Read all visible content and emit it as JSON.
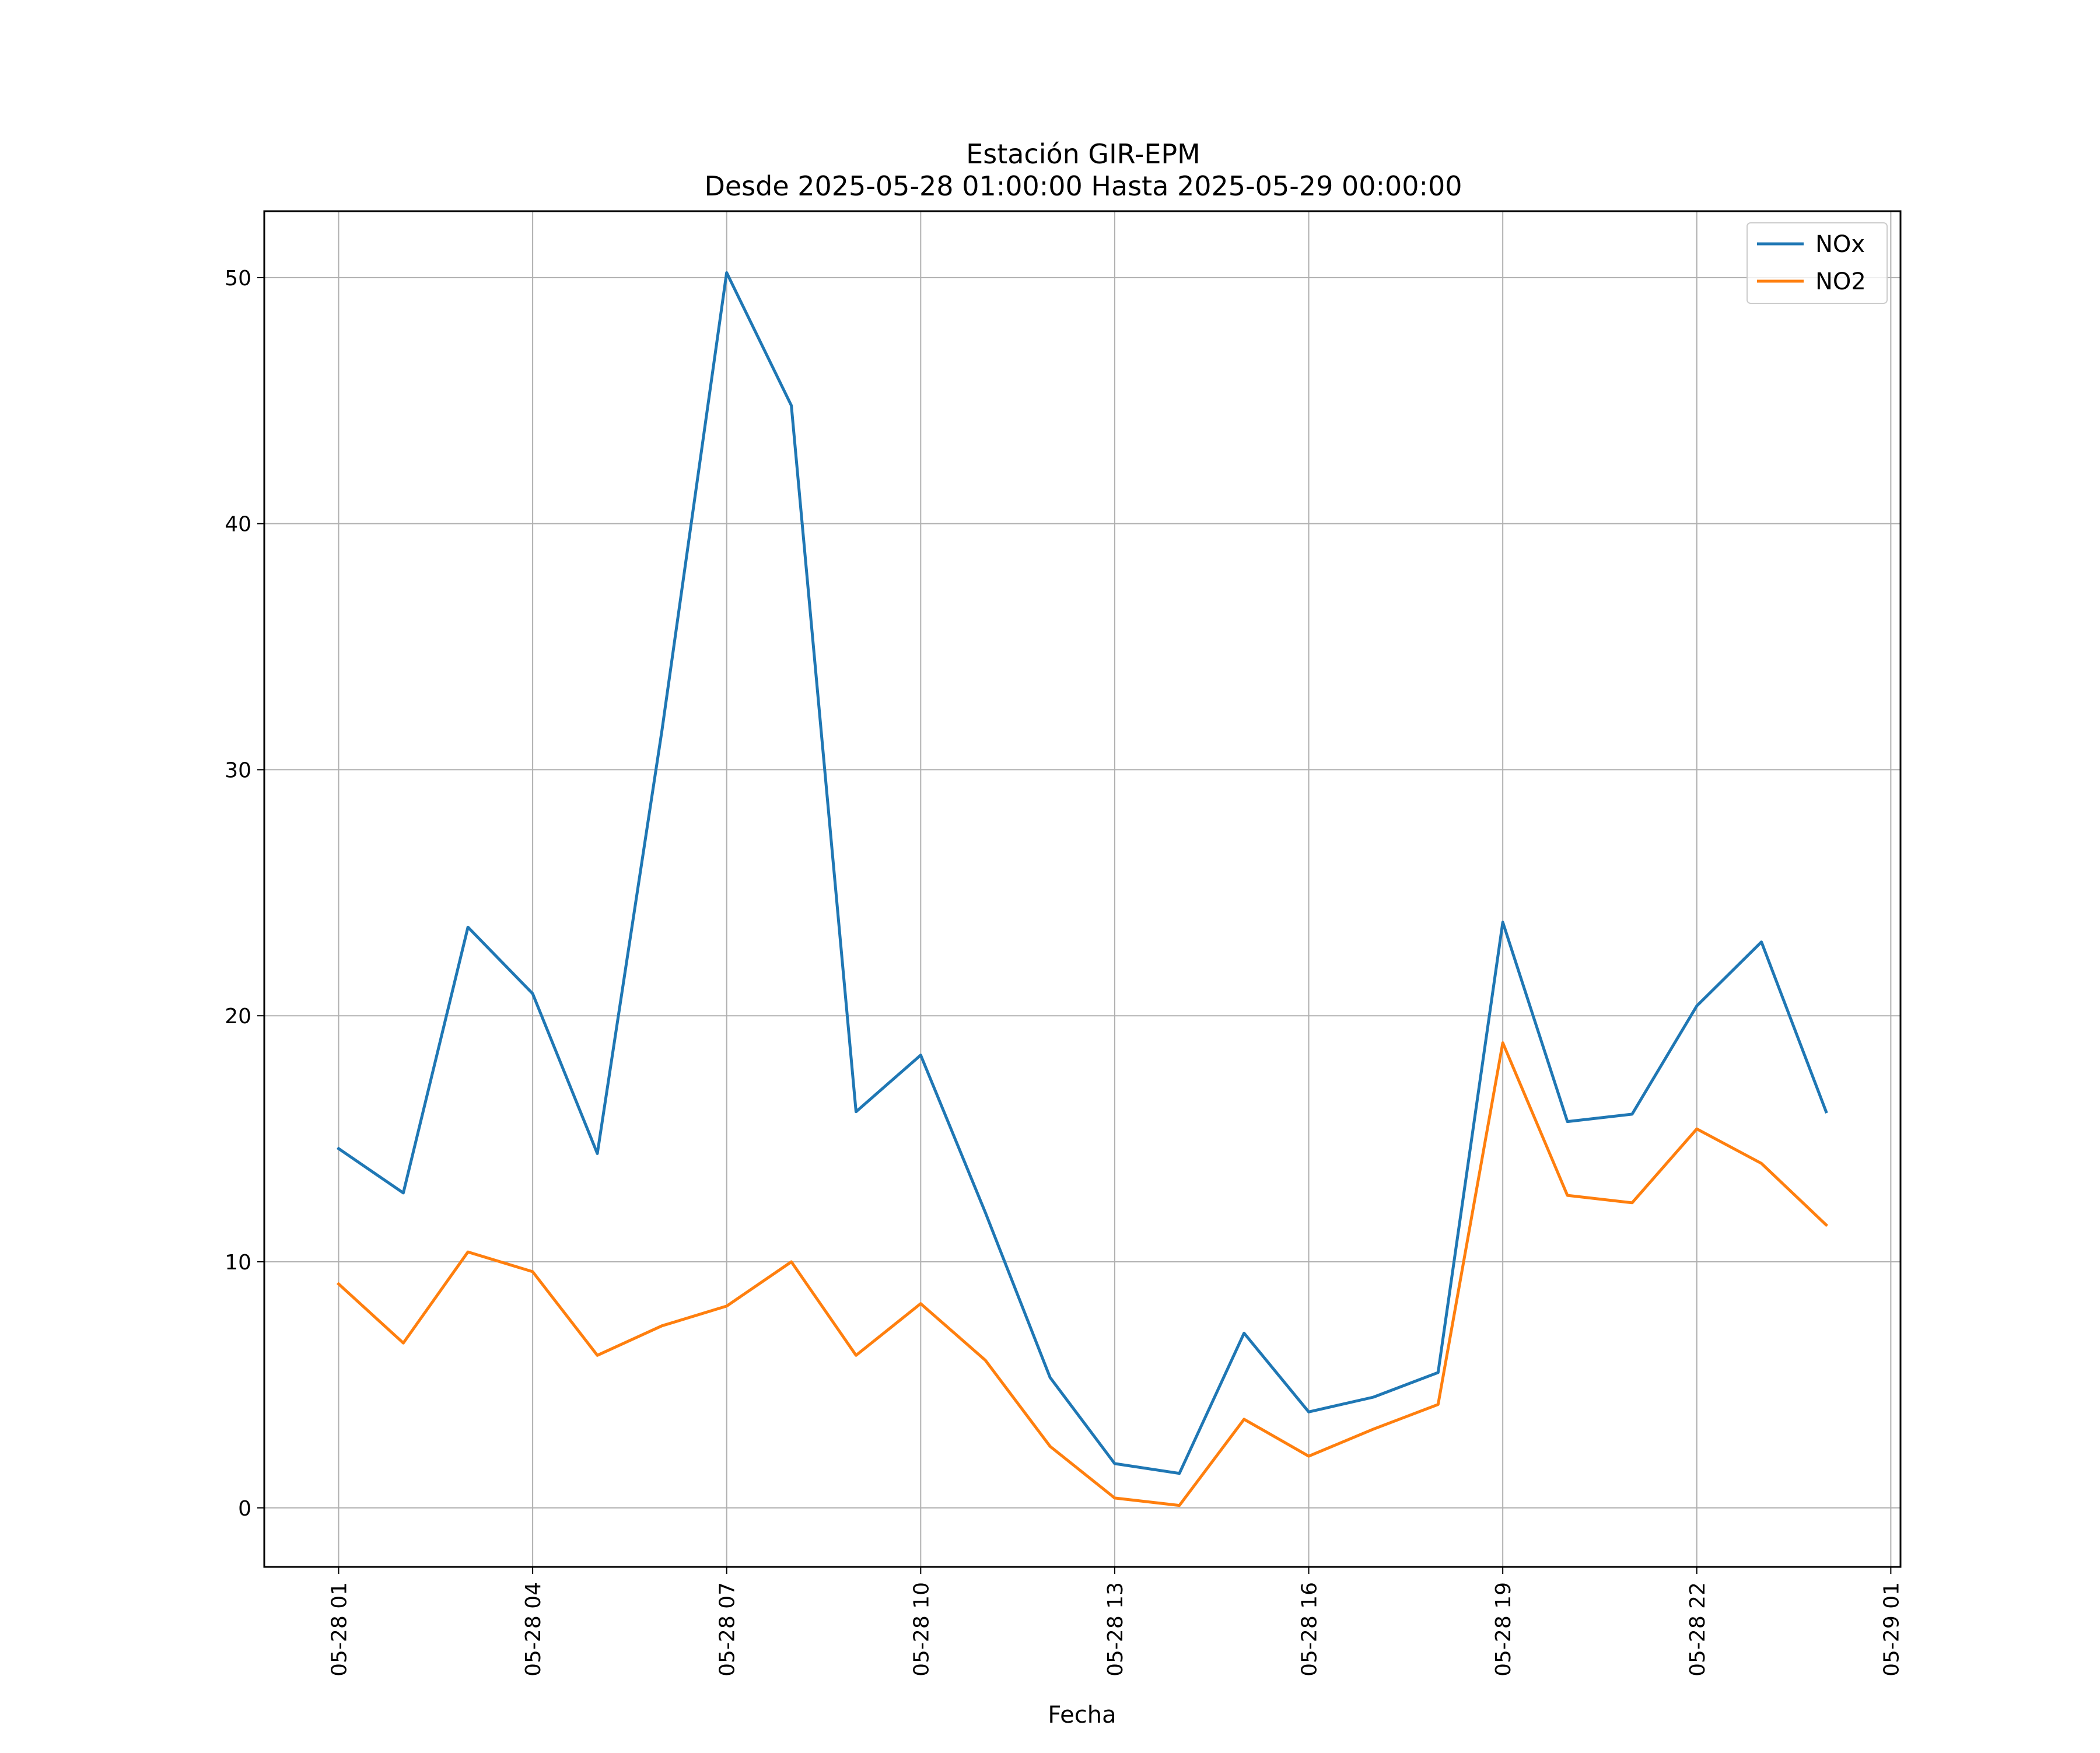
{
  "chart_data": {
    "type": "line",
    "title": "Estación GIR-EPM",
    "subtitle": "Desde 2025-05-28 01:00:00 Hasta 2025-05-29 00:00:00",
    "xlabel": "Fecha",
    "ylabel": "",
    "x": [
      "2025-05-28 01:00",
      "2025-05-28 02:00",
      "2025-05-28 03:00",
      "2025-05-28 04:00",
      "2025-05-28 05:00",
      "2025-05-28 06:00",
      "2025-05-28 07:00",
      "2025-05-28 08:00",
      "2025-05-28 09:00",
      "2025-05-28 10:00",
      "2025-05-28 11:00",
      "2025-05-28 12:00",
      "2025-05-28 13:00",
      "2025-05-28 14:00",
      "2025-05-28 15:00",
      "2025-05-28 16:00",
      "2025-05-28 17:00",
      "2025-05-28 18:00",
      "2025-05-28 19:00",
      "2025-05-28 20:00",
      "2025-05-28 21:00",
      "2025-05-28 22:00",
      "2025-05-28 23:00",
      "2025-05-29 00:00"
    ],
    "series": [
      {
        "name": "NOx",
        "color": "#1f77b4",
        "values": [
          14.6,
          12.8,
          23.6,
          20.9,
          14.4,
          31.6,
          50.2,
          44.8,
          16.1,
          18.4,
          12.0,
          5.3,
          1.8,
          1.4,
          7.1,
          3.9,
          4.5,
          5.5,
          23.8,
          15.7,
          16.0,
          20.4,
          23.0,
          16.1
        ]
      },
      {
        "name": "NO2",
        "color": "#ff7f0e",
        "values": [
          9.1,
          6.7,
          10.4,
          9.6,
          6.2,
          7.4,
          8.2,
          10.0,
          6.2,
          8.3,
          6.0,
          2.5,
          0.4,
          0.1,
          3.6,
          2.1,
          3.2,
          4.2,
          18.9,
          12.7,
          12.4,
          15.4,
          14.0,
          11.5
        ]
      }
    ],
    "x_ticks": [
      "05-28 01",
      "05-28 04",
      "05-28 07",
      "05-28 10",
      "05-28 13",
      "05-28 16",
      "05-28 19",
      "05-28 22",
      "05-29 01"
    ],
    "x_range": [
      "2025-05-27 23:51",
      "2025-05-29 01:09"
    ],
    "y_ticks": [
      0,
      10,
      20,
      30,
      40,
      50
    ],
    "ylim": [
      -2.4,
      52.7
    ],
    "grid": true,
    "legend_position": "top-right"
  }
}
